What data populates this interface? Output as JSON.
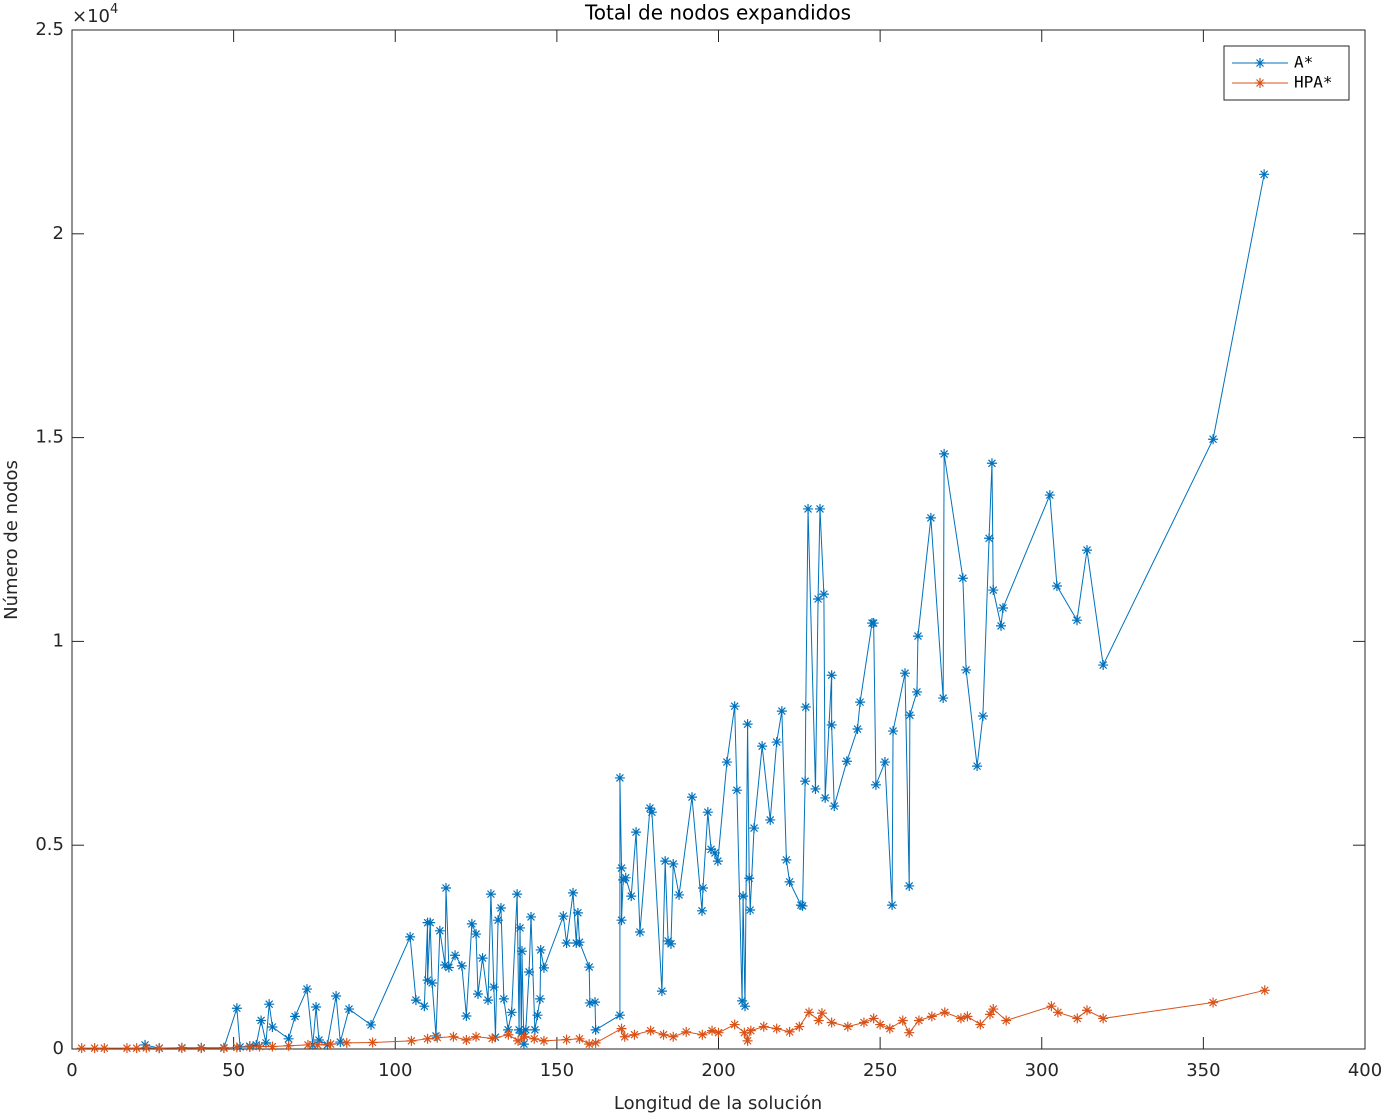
{
  "chart_data": {
    "type": "line",
    "title": "Total de nodos expandidos",
    "x_label": "Longitud de la solución",
    "y_label": "Número de nodos",
    "y_scale_base": "×10",
    "y_scale_exponent": "4",
    "xlim": [
      0,
      400
    ],
    "ylim": [
      0,
      25000
    ],
    "xticks": [
      0,
      50,
      100,
      150,
      200,
      250,
      300,
      350,
      400
    ],
    "yticks": [
      0,
      {
        "value": 5000,
        "label": "0.5"
      },
      {
        "value": 10000,
        "label": "1"
      },
      {
        "value": 15000,
        "label": "1.5"
      },
      {
        "value": 20000,
        "label": "2"
      },
      {
        "value": 25000,
        "label": "2.5"
      }
    ],
    "grid": false,
    "legend": "northeast",
    "series": [
      {
        "name": "A*",
        "color": "#0072bd",
        "marker": "*",
        "x": [
          22.6,
          27,
          34,
          40,
          47,
          51,
          52,
          55,
          57,
          58.5,
          60,
          61,
          62,
          67,
          69,
          72.7,
          74.5,
          75.5,
          76.4,
          79,
          81.7,
          83,
          85.7,
          92.5,
          104.6,
          106.4,
          109,
          110,
          110,
          110.8,
          111.4,
          112.6,
          113.8,
          115.4,
          115.7,
          116.6,
          118.5,
          120.6,
          122,
          123.7,
          125,
          125.6,
          127,
          128.7,
          129.6,
          130.5,
          131,
          131.8,
          132.7,
          133.6,
          134.9,
          136,
          137.7,
          138.3,
          138.6,
          139,
          139.2,
          139.8,
          140.4,
          141.4,
          142,
          143.2,
          144,
          144.8,
          145,
          146,
          152,
          153,
          155,
          156,
          156.5,
          157,
          160,
          160.2,
          161.8,
          162,
          169.5,
          169.5,
          170,
          170,
          170.5,
          171.3,
          173,
          174.5,
          175.7,
          178.8,
          179.4,
          182.5,
          183.5,
          184.4,
          185.3,
          186,
          187.8,
          191.8,
          194.9,
          195.2,
          196.7,
          197.7,
          198.9,
          199.8,
          202.6,
          205,
          205.7,
          207.3,
          207.6,
          208.2,
          209,
          209.5,
          209.8,
          211,
          213.5,
          216,
          218,
          219.6,
          221,
          222,
          225.5,
          226,
          226.8,
          227,
          227.7,
          230,
          230.8,
          231.4,
          232.6,
          233,
          235,
          235,
          235.8,
          239.7,
          243,
          243.8,
          247.5,
          248,
          248.7,
          251.5,
          253.7,
          254,
          257.7,
          259,
          259.2,
          261.4,
          261.7,
          265.7,
          269.5,
          269.8,
          275.6,
          276.6,
          280,
          281.8,
          283.7,
          284.6,
          285,
          287.4,
          288,
          302.5,
          304.7,
          310.9,
          314,
          319,
          353,
          368.8
        ],
        "values": [
          100,
          20,
          30,
          30,
          30,
          1000,
          50,
          70,
          100,
          700,
          150,
          1100,
          540,
          250,
          800,
          1470,
          100,
          1030,
          220,
          100,
          1300,
          170,
          980,
          590,
          2750,
          1200,
          1050,
          3100,
          1690,
          3100,
          1620,
          320,
          2900,
          2060,
          3950,
          2000,
          2300,
          2040,
          810,
          3070,
          2820,
          1350,
          2230,
          1200,
          3800,
          1520,
          290,
          3160,
          3460,
          1230,
          470,
          900,
          3800,
          470,
          2970,
          390,
          2400,
          120,
          470,
          1890,
          3240,
          470,
          830,
          1230,
          2430,
          1990,
          3260,
          2600,
          3830,
          2600,
          3340,
          2620,
          2010,
          1130,
          1150,
          470,
          830,
          6650,
          4440,
          3160,
          4150,
          4200,
          3750,
          5320,
          2870,
          5910,
          5810,
          1420,
          4610,
          2650,
          2580,
          4540,
          3780,
          6180,
          3390,
          3950,
          5810,
          4900,
          4810,
          4610,
          7040,
          8410,
          6350,
          1180,
          3750,
          1050,
          7970,
          4190,
          3410,
          5420,
          7430,
          5620,
          7530,
          8290,
          4640,
          4100,
          3530,
          3510,
          6570,
          8390,
          13250,
          6380,
          11040,
          13250,
          11160,
          6160,
          9170,
          7950,
          5960,
          7060,
          7850,
          8510,
          10450,
          10450,
          6480,
          7040,
          3530,
          7800,
          9220,
          4000,
          8190,
          8760,
          10130,
          13030,
          8610,
          14600,
          11550,
          9300,
          6940,
          8170,
          12530,
          14370,
          11260,
          10380,
          10820,
          13590,
          11360,
          10520,
          12240,
          9420,
          14960,
          21460
        ]
      },
      {
        "name": "HPA*",
        "color": "#d95319",
        "marker": "*",
        "x": [
          3,
          7,
          10,
          17,
          20,
          23,
          27,
          34,
          40,
          47,
          51,
          55,
          58,
          62,
          67,
          73,
          76,
          80,
          85,
          93,
          105,
          110,
          113,
          118,
          122,
          125,
          130,
          135,
          138,
          140,
          143,
          146,
          153,
          157,
          160,
          162,
          170,
          171,
          174,
          179,
          183,
          186,
          190,
          195,
          198,
          200,
          205,
          208,
          209,
          210,
          214,
          218,
          222,
          225,
          228,
          231,
          232,
          235,
          240,
          245,
          248,
          250,
          253,
          257,
          259,
          262,
          266,
          270,
          275,
          277,
          281,
          284,
          285,
          289,
          303,
          305,
          311,
          314,
          319,
          353,
          369
        ],
        "values": [
          20,
          20,
          20,
          20,
          20,
          30,
          20,
          20,
          20,
          20,
          40,
          50,
          60,
          60,
          80,
          100,
          100,
          120,
          150,
          160,
          200,
          250,
          280,
          300,
          220,
          300,
          260,
          350,
          200,
          300,
          250,
          200,
          230,
          250,
          120,
          150,
          500,
          300,
          350,
          450,
          350,
          300,
          420,
          350,
          450,
          400,
          600,
          400,
          200,
          450,
          550,
          500,
          420,
          550,
          900,
          700,
          880,
          650,
          550,
          650,
          750,
          600,
          500,
          700,
          400,
          700,
          800,
          900,
          750,
          800,
          600,
          850,
          980,
          700,
          1050,
          900,
          750,
          950,
          750,
          1140,
          1440
        ]
      }
    ]
  }
}
